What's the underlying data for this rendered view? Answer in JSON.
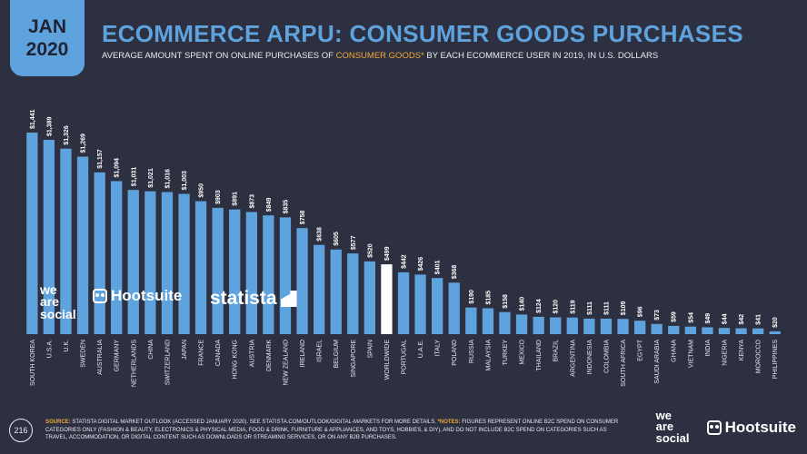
{
  "badge": {
    "month": "JAN",
    "year": "2020"
  },
  "header": {
    "title": "ECOMMERCE ARPU: CONSUMER GOODS PURCHASES",
    "subtitle_before": "AVERAGE AMOUNT SPENT ON ONLINE PURCHASES OF ",
    "subtitle_highlight": "CONSUMER GOODS*",
    "subtitle_after": " BY EACH ECOMMERCE USER IN 2019, IN U.S. DOLLARS"
  },
  "colors": {
    "background": "#2d3040",
    "bar": "#5fa3de",
    "highlight_bar": "#ffffff",
    "accent": "#f0a838",
    "text": "#e8eaf0"
  },
  "chart_data": {
    "type": "bar",
    "categories": [
      "SOUTH KOREA",
      "U.S.A.",
      "U.K.",
      "SWEDEN",
      "AUSTRALIA",
      "GERMANY",
      "NETHERLANDS",
      "CHINA",
      "SWITZERLAND",
      "JAPAN",
      "FRANCE",
      "CANADA",
      "HONG KONG",
      "AUSTRIA",
      "DENMARK",
      "NEW ZEALAND",
      "IRELAND",
      "ISRAEL",
      "BELGIUM",
      "SINGAPORE",
      "SPAIN",
      "WORLDWIDE",
      "PORTUGAL",
      "U.A.E.",
      "ITALY",
      "POLAND",
      "RUSSIA",
      "MALAYSIA",
      "TURKEY",
      "MEXICO",
      "THAILAND",
      "BRAZIL",
      "ARGENTINA",
      "INDONESIA",
      "COLOMBIA",
      "SOUTH AFRICA",
      "EGYPT",
      "SAUDI ARABIA",
      "GHANA",
      "VIETNAM",
      "INDIA",
      "NIGERIA",
      "KENYA",
      "MOROCCO",
      "PHILIPPINES"
    ],
    "values": [
      1441,
      1389,
      1326,
      1269,
      1157,
      1094,
      1031,
      1021,
      1016,
      1003,
      950,
      903,
      891,
      873,
      849,
      835,
      758,
      638,
      605,
      577,
      520,
      499,
      442,
      426,
      401,
      368,
      190,
      185,
      158,
      140,
      124,
      120,
      119,
      111,
      111,
      109,
      96,
      73,
      59,
      54,
      49,
      44,
      42,
      41,
      20
    ],
    "value_labels": [
      "$1,441",
      "$1,389",
      "$1,326",
      "$1,269",
      "$1,157",
      "$1,094",
      "$1,031",
      "$1,021",
      "$1,016",
      "$1,003",
      "$950",
      "$903",
      "$891",
      "$873",
      "$849",
      "$835",
      "$758",
      "$638",
      "$605",
      "$577",
      "$520",
      "$499",
      "$442",
      "$426",
      "$401",
      "$368",
      "$190",
      "$185",
      "$158",
      "$140",
      "$124",
      "$120",
      "$119",
      "$111",
      "$111",
      "$109",
      "$96",
      "$73",
      "$59",
      "$54",
      "$49",
      "$44",
      "$42",
      "$41",
      "$20"
    ],
    "highlight": "WORLDWIDE",
    "ylim": [
      0,
      1441
    ],
    "grid": false,
    "legend": "none"
  },
  "watermarks": {
    "wearesocial": [
      "we",
      "are",
      "social"
    ],
    "hootsuite": "Hootsuite",
    "statista": "statista"
  },
  "footer": {
    "page_number": "216",
    "source_label": "SOURCE:",
    "source_text": " STATISTA DIGITAL MARKET OUTLOOK (ACCESSED JANUARY 2020). SEE ",
    "source_link": "STATISTA.COM/OUTLOOK/DIGITAL-MARKETS",
    "source_after": " FOR MORE DETAILS. ",
    "notes_label": "*NOTES:",
    "notes_text": " FIGURES REPRESENT ONLINE B2C SPEND ON CONSUMER CATEGORIES ONLY (FASHION & BEAUTY, ELECTRONICS & PHYSICAL MEDIA, FOOD & DRINK, FURNITURE & APPLIANCES, AND TOYS, HOBBIES, & DIY), AND DO NOT INCLUDE B2C SPEND ON CATEGORIES SUCH AS TRAVEL, ACCOMMODATION, OR DIGITAL CONTENT SUCH AS DOWNLOADS OR STREAMING SERVICES, OR ON ANY B2B PURCHASES.",
    "logo_wearesocial": [
      "we",
      "are",
      "social"
    ],
    "logo_hootsuite": "Hootsuite"
  }
}
